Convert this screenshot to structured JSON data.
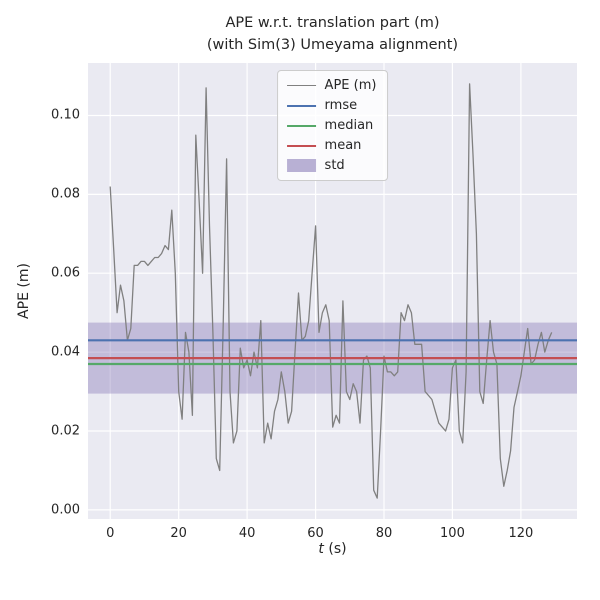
{
  "chart_data": {
    "type": "line",
    "title": "APE w.r.t. translation part (m)\n(with Sim(3) Umeyama alignment)",
    "title_lines": [
      "APE w.r.t. translation part (m)",
      "(with Sim(3) Umeyama alignment)"
    ],
    "xlabel": "t (s)",
    "xlabel_var": "t",
    "xlabel_unit": " (s)",
    "ylabel": "APE (m)",
    "xlim": [
      -6.5,
      136.4
    ],
    "ylim": [
      -0.0023,
      0.1133
    ],
    "xticks": [
      0,
      20,
      40,
      60,
      80,
      100,
      120
    ],
    "yticks": [
      0.0,
      0.02,
      0.04,
      0.06,
      0.08,
      0.1
    ],
    "grid": true,
    "plot_bg": "#eaeaf2",
    "grid_color": "#ffffff",
    "legend_position": "upper center",
    "series": [
      {
        "name": "APE (m)",
        "type": "line",
        "color": "#808080",
        "x_start": 0,
        "x_step": 1,
        "y": [
          0.082,
          0.066,
          0.05,
          0.057,
          0.053,
          0.043,
          0.046,
          0.062,
          0.062,
          0.063,
          0.063,
          0.062,
          0.063,
          0.064,
          0.064,
          0.065,
          0.067,
          0.066,
          0.076,
          0.06,
          0.03,
          0.023,
          0.045,
          0.04,
          0.024,
          0.095,
          0.078,
          0.06,
          0.107,
          0.072,
          0.045,
          0.013,
          0.01,
          0.047,
          0.089,
          0.03,
          0.017,
          0.02,
          0.041,
          0.036,
          0.038,
          0.034,
          0.04,
          0.036,
          0.048,
          0.017,
          0.022,
          0.018,
          0.025,
          0.028,
          0.035,
          0.03,
          0.022,
          0.025,
          0.04,
          0.055,
          0.043,
          0.044,
          0.048,
          0.06,
          0.072,
          0.045,
          0.05,
          0.052,
          0.048,
          0.021,
          0.024,
          0.022,
          0.053,
          0.03,
          0.028,
          0.032,
          0.03,
          0.022,
          0.038,
          0.039,
          0.036,
          0.005,
          0.003,
          0.02,
          0.039,
          0.035,
          0.035,
          0.034,
          0.035,
          0.05,
          0.048,
          0.052,
          0.05,
          0.042,
          0.042,
          0.042,
          0.03,
          0.029,
          0.028,
          0.025,
          0.022,
          0.021,
          0.02,
          0.023,
          0.036,
          0.038,
          0.02,
          0.017,
          0.035,
          0.108,
          0.09,
          0.07,
          0.03,
          0.027,
          0.038,
          0.048,
          0.04,
          0.037,
          0.013,
          0.006,
          0.01,
          0.015,
          0.026,
          0.03,
          0.034,
          0.04,
          0.046,
          0.037,
          0.038,
          0.042,
          0.045,
          0.04,
          0.043,
          0.045
        ]
      },
      {
        "name": "rmse",
        "type": "hline",
        "color": "#4c72b0",
        "value": 0.043
      },
      {
        "name": "median",
        "type": "hline",
        "color": "#55a868",
        "value": 0.037
      },
      {
        "name": "mean",
        "type": "hline",
        "color": "#c44e52",
        "value": 0.0385
      },
      {
        "name": "std",
        "type": "band",
        "color": "#8172b2",
        "range": [
          0.0295,
          0.0475
        ],
        "opacity": 0.38
      }
    ]
  }
}
